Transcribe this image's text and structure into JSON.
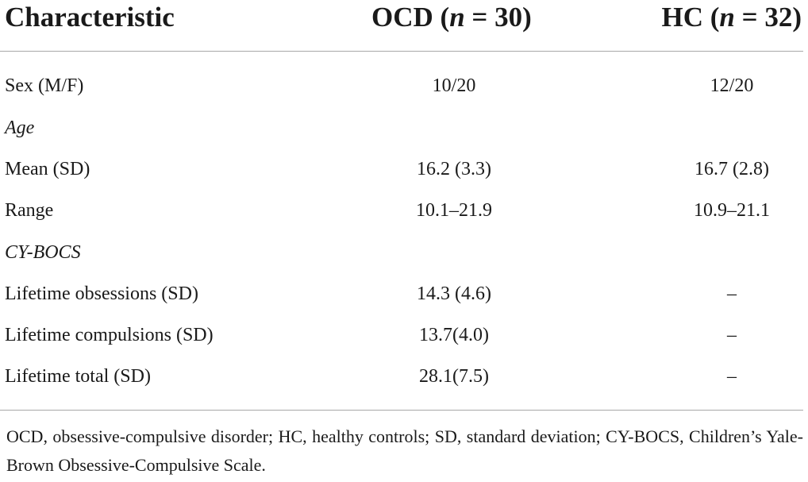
{
  "table": {
    "header": {
      "characteristic": "Characteristic",
      "ocd_prefix": "OCD (",
      "ocd_n": "n",
      "ocd_suffix": " = 30)",
      "hc_prefix": "HC (",
      "hc_n": "n",
      "hc_suffix": " = 32)"
    },
    "rows": [
      {
        "label": "Sex (M/F)",
        "ocd": "10/20",
        "hc": "12/20",
        "italic": false
      },
      {
        "label": "Age",
        "ocd": "",
        "hc": "",
        "italic": true
      },
      {
        "label": "Mean (SD)",
        "ocd": "16.2 (3.3)",
        "hc": "16.7 (2.8)",
        "italic": false
      },
      {
        "label": "Range",
        "ocd": "10.1–21.9",
        "hc": "10.9–21.1",
        "italic": false
      },
      {
        "label": "CY-BOCS",
        "ocd": "",
        "hc": "",
        "italic": true
      },
      {
        "label": "Lifetime obsessions (SD)",
        "ocd": "14.3 (4.6)",
        "hc": "–",
        "italic": false
      },
      {
        "label": "Lifetime compulsions (SD)",
        "ocd": "13.7(4.0)",
        "hc": "–",
        "italic": false
      },
      {
        "label": "Lifetime total (SD)",
        "ocd": "28.1(7.5)",
        "hc": "–",
        "italic": false
      }
    ]
  },
  "footnote": "OCD, obsessive-compulsive disorder; HC, healthy controls; SD, standard deviation; CY-BOCS, Children’s Yale-Brown Obsessive-Compulsive Scale."
}
